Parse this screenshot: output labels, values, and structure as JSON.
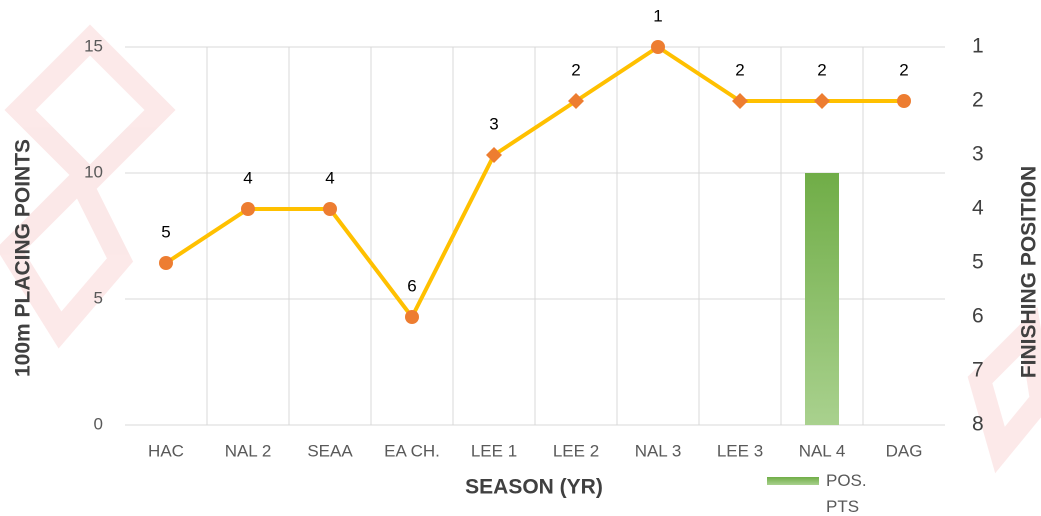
{
  "chart_data": {
    "type": "bar_line",
    "categories": [
      "HAC",
      "NAL 2",
      "SEAA",
      "EA CH.",
      "LEE 1",
      "LEE 2",
      "NAL 3",
      "LEE 3",
      "NAL 4",
      "DAG"
    ],
    "series": [
      {
        "name": "POS. PTS",
        "type": "bar",
        "color": "#70ad47",
        "values": [
          null,
          null,
          null,
          null,
          null,
          null,
          null,
          null,
          10,
          null
        ]
      },
      {
        "type": "line",
        "axis": "y2",
        "color": "#ffc000",
        "marker_color": "#ed7d31",
        "markers": [
          "circle",
          "circle",
          "circle",
          "circle",
          "diamond",
          "diamond",
          "circle",
          "diamond",
          "diamond",
          "circle"
        ],
        "values": [
          5,
          4,
          4,
          6,
          3,
          2,
          1,
          2,
          2,
          2
        ]
      }
    ],
    "ylabel": "100m PLACING POINTS",
    "y2label": "FINISHING POSITION",
    "xlabel": "SEASON (YR)",
    "ylim": [
      0,
      15
    ],
    "yticks": [
      0,
      5,
      10,
      15
    ],
    "y2lim": [
      8,
      1
    ],
    "y2ticks": [
      1,
      2,
      3,
      4,
      5,
      6,
      7,
      8
    ],
    "grid": true,
    "legend": "bottom-right"
  }
}
